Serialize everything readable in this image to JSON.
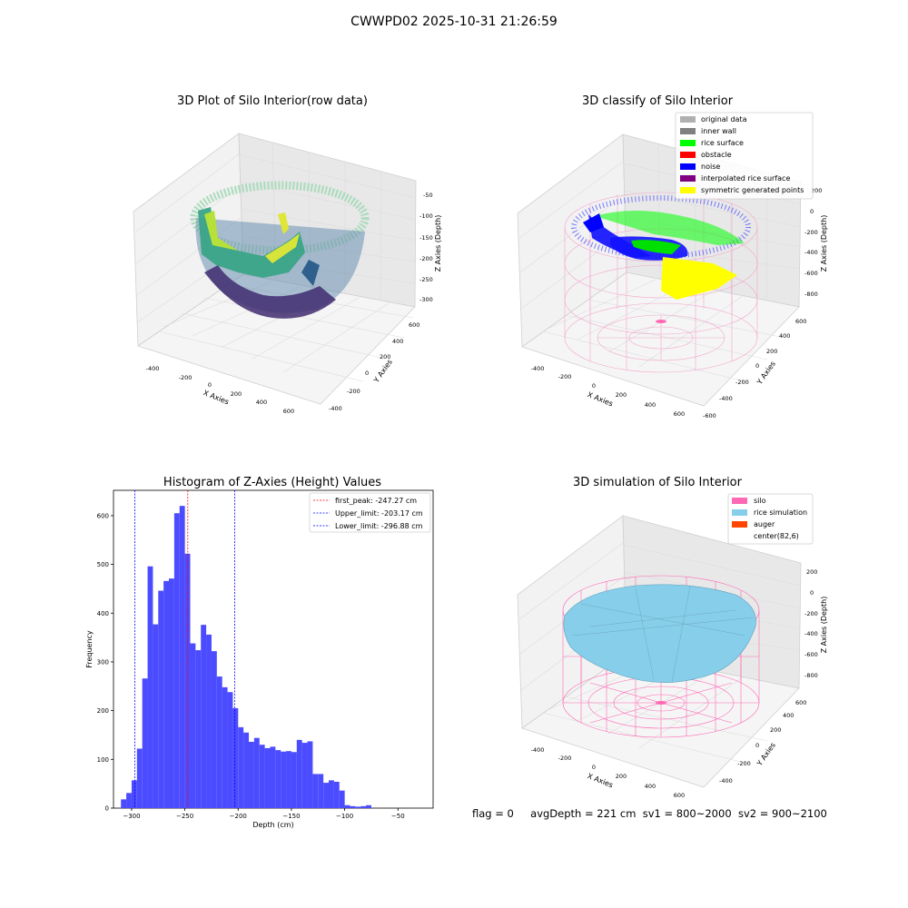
{
  "suptitle": "CWWPD02 2025-10-31 21:26:59",
  "panels": {
    "raw": {
      "title": "3D Plot of Silo Interior(row data)",
      "xlabel": "X Axies",
      "ylabel": "Y Axies",
      "zlabel": "Z Axies (Depth)",
      "xticks": [
        "-400",
        "-200",
        "0",
        "200",
        "400",
        "600"
      ],
      "yticks": [
        "-400",
        "-200",
        "0",
        "200",
        "400",
        "600"
      ],
      "zticks": [
        "-50",
        "-100",
        "-150",
        "-200",
        "-250",
        "-300"
      ]
    },
    "classify": {
      "title": "3D classify of Silo Interior",
      "xlabel": "X Axies",
      "ylabel": "Y Axies",
      "zlabel": "Z Axies (Depth)",
      "xticks": [
        "-400",
        "-200",
        "0",
        "200",
        "400",
        "600"
      ],
      "yticks": [
        "-600",
        "-400",
        "-200",
        "0",
        "200",
        "400",
        "600"
      ],
      "zticks": [
        "200",
        "0",
        "-200",
        "-400",
        "-600",
        "-800"
      ],
      "legend": [
        {
          "label": "original data",
          "color": "#b0b0b0"
        },
        {
          "label": "inner wall",
          "color": "#808080"
        },
        {
          "label": "rice surface",
          "color": "#00ff00"
        },
        {
          "label": "obstacle",
          "color": "#ff0000"
        },
        {
          "label": "noise",
          "color": "#0000ff"
        },
        {
          "label": "interpolated rice surface",
          "color": "#800080"
        },
        {
          "label": "symmetric generated points",
          "color": "#ffff00"
        }
      ]
    },
    "simulation": {
      "title": "3D simulation of Silo Interior",
      "xlabel": "X Axies",
      "ylabel": "Y Axies",
      "zlabel": "Z Axies (Depth)",
      "xticks": [
        "-400",
        "-200",
        "0",
        "200",
        "400",
        "600"
      ],
      "yticks": [
        "-400",
        "-200",
        "0",
        "200",
        "400",
        "600"
      ],
      "zticks": [
        "200",
        "0",
        "-200",
        "-400",
        "-600",
        "-800"
      ],
      "legend": [
        {
          "label": "silo",
          "color": "#ff69b4"
        },
        {
          "label": "rice simulation",
          "color": "#87ceeb"
        },
        {
          "label": "auger",
          "color": "#ff4500"
        },
        {
          "label": "center(82,6)",
          "color": ""
        }
      ]
    }
  },
  "status": {
    "flag": "flag = 0",
    "avg_depth": "avgDepth = 221 cm",
    "sv1": "sv1 = 800~2000",
    "sv2": "sv2 = 900~2100"
  },
  "chart_data": {
    "type": "bar",
    "title": "Histogram of Z-Axies (Height) Values",
    "xlabel": "Depth (cm)",
    "ylabel": "Frequency",
    "xlim": [
      -317,
      -17
    ],
    "ylim": [
      0,
      652
    ],
    "xticks": [
      -300,
      -250,
      -200,
      -150,
      -100,
      -50
    ],
    "yticks": [
      0,
      100,
      200,
      300,
      400,
      500,
      600
    ],
    "bar_color": "#4b4bff",
    "bin_width": 5,
    "bins_left": [
      -310,
      -305,
      -300,
      -295,
      -290,
      -285,
      -280,
      -275,
      -270,
      -265,
      -260,
      -255,
      -250,
      -245,
      -240,
      -235,
      -230,
      -225,
      -220,
      -215,
      -210,
      -205,
      -200,
      -195,
      -190,
      -185,
      -180,
      -175,
      -170,
      -165,
      -160,
      -155,
      -150,
      -145,
      -140,
      -135,
      -130,
      -125,
      -120,
      -115,
      -110,
      -105,
      -100,
      -95,
      -90,
      -85,
      -80,
      -75,
      -70,
      -65,
      -60,
      -55,
      -50,
      -45,
      -40,
      -35
    ],
    "values": [
      18,
      31,
      57,
      122,
      266,
      496,
      377,
      446,
      466,
      471,
      605,
      620,
      522,
      338,
      324,
      376,
      356,
      322,
      270,
      248,
      238,
      205,
      166,
      155,
      136,
      144,
      130,
      123,
      126,
      119,
      116,
      117,
      115,
      140,
      134,
      137,
      70,
      70,
      52,
      57,
      54,
      36,
      6,
      4,
      3,
      4,
      6,
      0,
      0,
      0,
      0,
      0,
      0,
      0,
      0,
      0
    ],
    "lines": [
      {
        "label": "first_peak: -247.27 cm",
        "x": -247.27,
        "color": "#ff0000"
      },
      {
        "label": "Upper_limit: -203.17 cm",
        "x": -203.17,
        "color": "#0000ff"
      },
      {
        "label": "Lower_limit: -296.88 cm",
        "x": -296.88,
        "color": "#0000ff"
      }
    ]
  }
}
